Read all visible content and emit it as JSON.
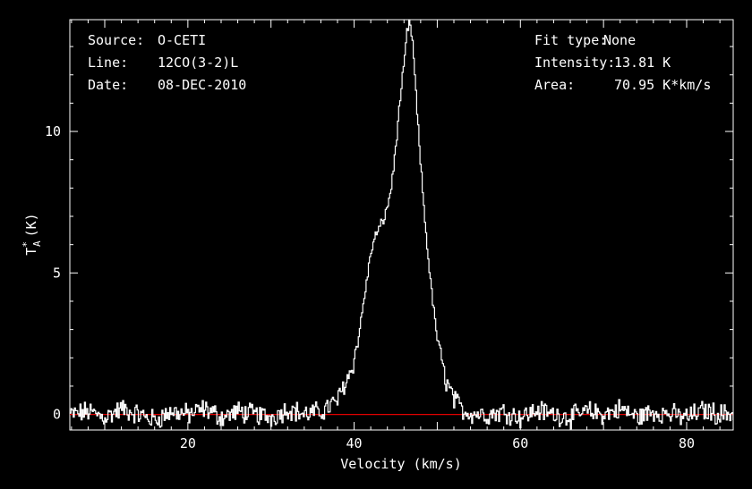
{
  "header_left": {
    "source_label": "Source:",
    "source_value": "O-CETI",
    "line_label": "Line:",
    "line_value": "12CO(3-2)L",
    "date_label": "Date:",
    "date_value": "08-DEC-2010"
  },
  "header_right": {
    "fit_label": "Fit type:",
    "fit_value": "None",
    "intensity_label": "Intensity:",
    "intensity_value": "13.81 K",
    "area_label": "Area:",
    "area_value": "70.95 K*km/s"
  },
  "colors": {
    "background": "#000000",
    "foreground": "#ffffff",
    "baseline": "#e00000"
  },
  "chart_data": {
    "type": "line",
    "title": "",
    "xlabel": "Velocity (km/s)",
    "ylabel_main": "T",
    "ylabel_sup": "*",
    "ylabel_sub": "A",
    "ylabel_unit": "(K)",
    "xlim": [
      5.8,
      85.6
    ],
    "ylim": [
      -0.55,
      13.95
    ],
    "x_ticks": [
      20,
      40,
      60,
      80
    ],
    "y_ticks": [
      0,
      5,
      10
    ],
    "x_tick_labels": [
      "20",
      "40",
      "60",
      "80"
    ],
    "y_tick_labels": [
      "0",
      "5",
      "10"
    ],
    "baseline_value": 0,
    "series": [
      {
        "x": [
          6,
          8,
          10,
          12,
          14,
          16,
          18,
          20,
          22,
          24,
          26,
          28,
          30,
          32,
          34,
          36,
          37,
          38,
          38.5,
          39,
          39.5,
          40,
          40.5,
          41,
          41.5,
          42,
          42.5,
          43,
          43.5,
          44,
          44.5,
          45,
          45.5,
          46,
          46.3,
          46.6,
          46.9,
          47.2,
          47.5,
          48,
          48.5,
          49,
          49.5,
          50,
          50.5,
          51,
          52,
          53,
          54,
          56,
          58,
          60,
          62,
          64,
          66,
          68,
          70,
          72,
          74,
          76,
          78,
          80,
          82,
          84,
          85.5
        ],
        "y": [
          0,
          0.1,
          -0.1,
          0.2,
          0,
          -0.2,
          0.1,
          0,
          0.2,
          -0.1,
          0.1,
          0,
          -0.1,
          0.2,
          0,
          0.1,
          0.3,
          0.5,
          0.9,
          1.2,
          1.5,
          2.0,
          2.8,
          3.8,
          4.8,
          5.8,
          6.3,
          6.6,
          6.9,
          7.4,
          8.2,
          9.6,
          11.2,
          12.5,
          13.5,
          13.81,
          13.4,
          12.2,
          10.7,
          8.6,
          6.7,
          5.1,
          3.7,
          2.6,
          1.8,
          1.2,
          0.5,
          0.15,
          0.05,
          0,
          0.1,
          -0.1,
          0.15,
          0,
          -0.1,
          0.1,
          0,
          0.2,
          -0.1,
          0.1,
          0,
          -0.1,
          0.15,
          0,
          0.05
        ]
      }
    ]
  }
}
